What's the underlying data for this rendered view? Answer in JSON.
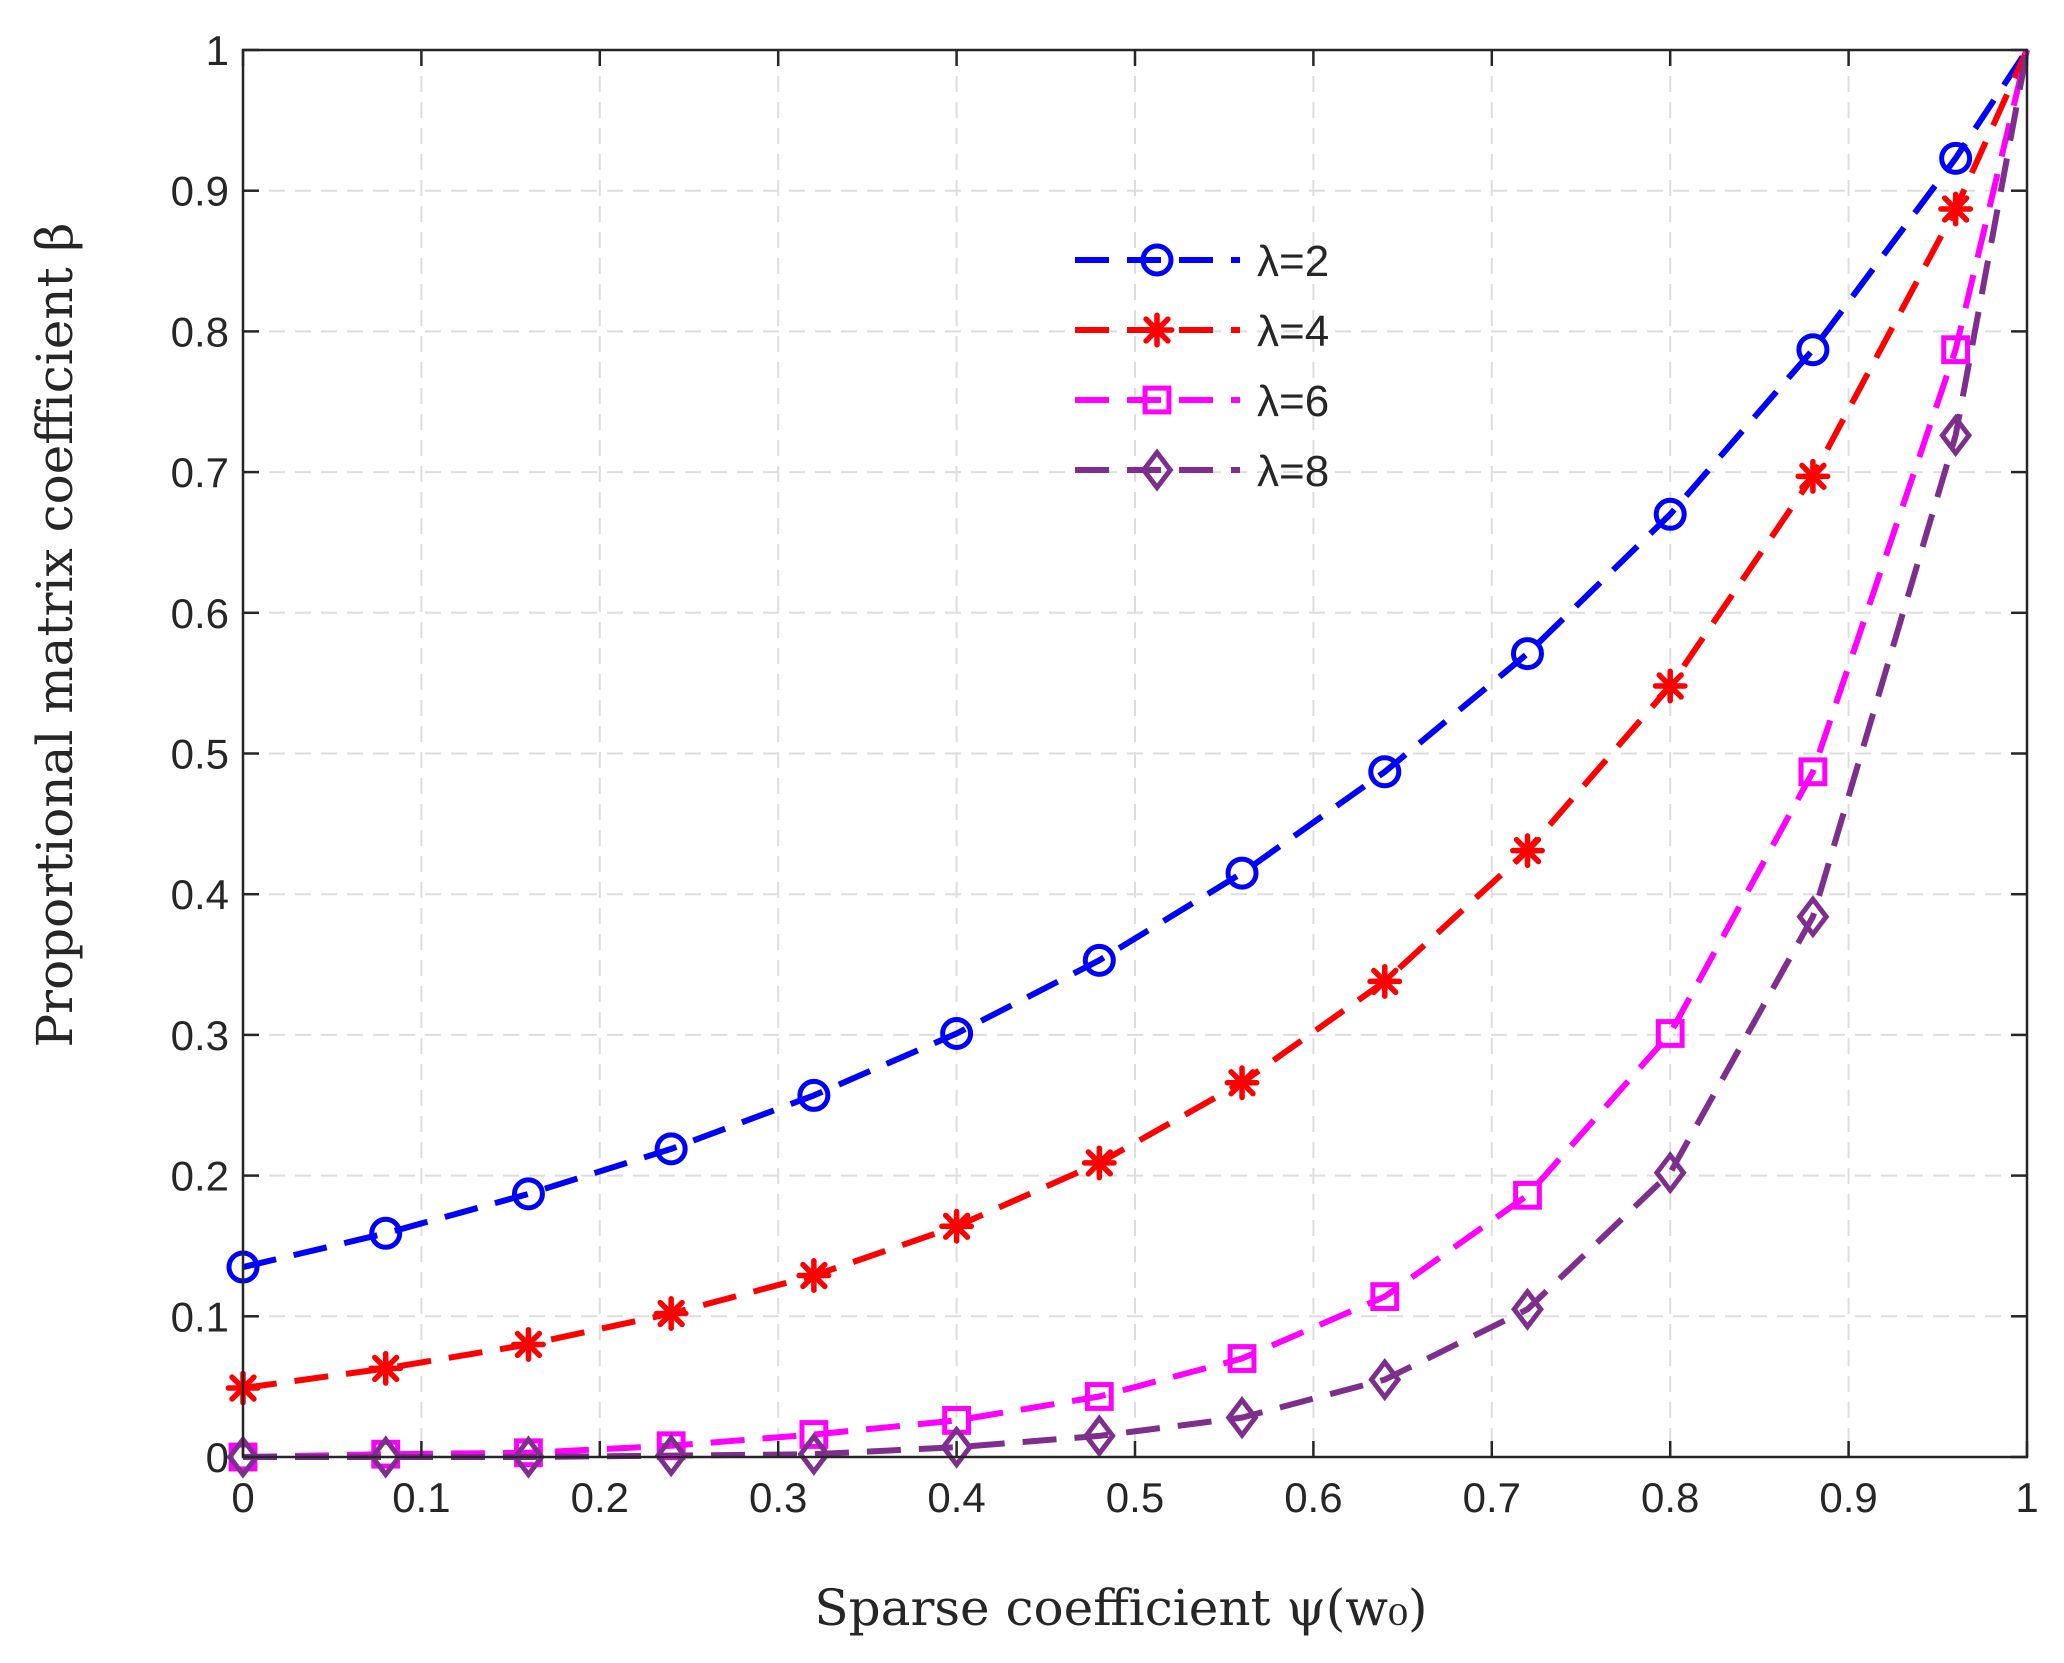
{
  "chart_data": {
    "type": "line",
    "title": "",
    "xlabel": "Sparse coefficient ψ(w₀)",
    "ylabel": "Proportional matrix coefficient β",
    "xlim": [
      0,
      1
    ],
    "ylim": [
      0,
      1
    ],
    "xticks": [
      "0",
      "0.1",
      "0.2",
      "0.3",
      "0.4",
      "0.5",
      "0.6",
      "0.7",
      "0.8",
      "0.9",
      "1"
    ],
    "yticks": [
      "0",
      "0.1",
      "0.2",
      "0.3",
      "0.4",
      "0.5",
      "0.6",
      "0.7",
      "0.8",
      "0.9",
      "1"
    ],
    "grid": true,
    "legend_position": "top-center",
    "x": [
      0,
      0.08,
      0.16,
      0.24,
      0.32,
      0.4,
      0.48,
      0.56,
      0.64,
      0.72,
      0.8,
      0.88,
      0.96
    ],
    "series": [
      {
        "name": "λ=2",
        "color": "#0000ff",
        "marker": "circle",
        "values": [
          0.135,
          0.159,
          0.187,
          0.219,
          0.257,
          0.301,
          0.353,
          0.415,
          0.487,
          0.571,
          0.67,
          0.787,
          0.923
        ]
      },
      {
        "name": "λ=4",
        "color": "#ff0000",
        "marker": "asterisk",
        "values": [
          0.049,
          0.063,
          0.08,
          0.102,
          0.129,
          0.164,
          0.209,
          0.266,
          0.338,
          0.431,
          0.548,
          0.697,
          0.887
        ]
      },
      {
        "name": "λ=6",
        "color": "#ff00ff",
        "marker": "square",
        "values": [
          0.0,
          0.002,
          0.003,
          0.008,
          0.016,
          0.026,
          0.043,
          0.07,
          0.114,
          0.186,
          0.301,
          0.487,
          0.787
        ]
      },
      {
        "name": "λ=8",
        "color": "#7e2f8e",
        "marker": "diamond",
        "values": [
          0.0,
          0.0,
          0.0,
          0.001,
          0.002,
          0.007,
          0.015,
          0.028,
          0.055,
          0.105,
          0.202,
          0.384,
          0.726
        ]
      }
    ],
    "end_point": {
      "x": 1,
      "y": 1
    }
  }
}
